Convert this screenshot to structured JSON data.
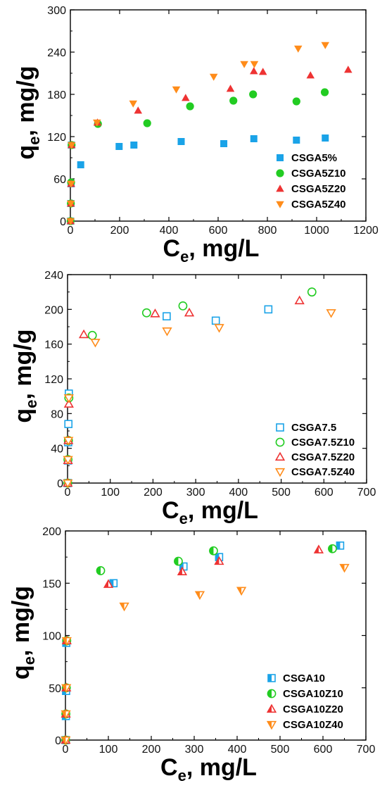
{
  "chart_data": [
    {
      "type": "scatter",
      "xlabel_main": "C",
      "xlabel_sub": "e",
      "xlabel_rest": ", mg/L",
      "ylabel_main": "q",
      "ylabel_sub": "e",
      "ylabel_rest": ", mg/g",
      "xlim": [
        0,
        1200
      ],
      "ylim": [
        0,
        300
      ],
      "xticks": [
        0,
        200,
        400,
        600,
        800,
        1000,
        1200
      ],
      "yticks": [
        0,
        60,
        120,
        180,
        240,
        300
      ],
      "legend_position": "bottom-right",
      "series": [
        {
          "name": "CSGA5%",
          "marker": "square",
          "color": "#1aa3e8",
          "fill": "full",
          "x": [
            1,
            2,
            3,
            4,
            42,
            198,
            258,
            450,
            623,
            745,
            918,
            1035
          ],
          "y": [
            0,
            25,
            53,
            108,
            80,
            106,
            108,
            113,
            110,
            117,
            115,
            118
          ]
        },
        {
          "name": "CSGA5Z10",
          "marker": "circle",
          "color": "#22cc22",
          "fill": "full",
          "x": [
            1,
            2,
            3,
            5,
            112,
            312,
            486,
            662,
            742,
            918,
            1033
          ],
          "y": [
            0,
            25,
            55,
            108,
            138,
            139,
            163,
            171,
            180,
            170,
            183
          ]
        },
        {
          "name": "CSGA5Z20",
          "marker": "triangle-up",
          "color": "#ee3333",
          "fill": "full",
          "x": [
            1,
            2,
            3,
            5,
            110,
            275,
            468,
            650,
            745,
            782,
            975,
            1128
          ],
          "y": [
            0,
            25,
            53,
            108,
            140,
            157,
            175,
            188,
            213,
            212,
            207,
            215
          ]
        },
        {
          "name": "CSGA5Z40",
          "marker": "triangle-down",
          "color": "#ff8c1a",
          "fill": "full",
          "x": [
            1,
            2,
            3,
            5,
            108,
            255,
            430,
            582,
            706,
            747,
            925,
            1035
          ],
          "y": [
            0,
            25,
            53,
            108,
            140,
            167,
            187,
            205,
            223,
            223,
            245,
            250
          ]
        }
      ]
    },
    {
      "type": "scatter",
      "xlabel_main": "C",
      "xlabel_sub": "e",
      "xlabel_rest": ", mg/L",
      "ylabel_main": "q",
      "ylabel_sub": "e",
      "ylabel_rest": ", mg/g",
      "xlim": [
        0,
        700
      ],
      "ylim": [
        0,
        240
      ],
      "xticks": [
        0,
        100,
        200,
        300,
        400,
        500,
        600,
        700
      ],
      "yticks": [
        0,
        40,
        80,
        120,
        160,
        200,
        240
      ],
      "legend_position": "bottom-right",
      "series": [
        {
          "name": "CSGA7.5",
          "marker": "square",
          "color": "#1aa3e8",
          "fill": "open",
          "x": [
            0.5,
            1,
            1.5,
            2,
            3,
            232,
            347,
            470
          ],
          "y": [
            0,
            26,
            47,
            68,
            103,
            192,
            187,
            200
          ]
        },
        {
          "name": "CSGA7.5Z10",
          "marker": "circle",
          "color": "#22cc22",
          "fill": "open",
          "x": [
            0.5,
            1,
            2,
            3,
            58,
            185,
            270,
            572
          ],
          "y": [
            0,
            27,
            49,
            98,
            170,
            196,
            204,
            220
          ]
        },
        {
          "name": "CSGA7.5Z20",
          "marker": "triangle-up",
          "color": "#ee3333",
          "fill": "open",
          "x": [
            0.5,
            1,
            2,
            3,
            38,
            205,
            285,
            543
          ],
          "y": [
            0,
            26,
            49,
            91,
            171,
            195,
            196,
            210
          ]
        },
        {
          "name": "CSGA7.5Z40",
          "marker": "triangle-down",
          "color": "#ff8c1a",
          "fill": "open",
          "x": [
            0.5,
            1,
            2,
            3,
            65,
            233,
            355,
            617
          ],
          "y": [
            0,
            27,
            49,
            98,
            162,
            175,
            179,
            196
          ]
        }
      ]
    },
    {
      "type": "scatter",
      "xlabel_main": "C",
      "xlabel_sub": "e",
      "xlabel_rest": ", mg/L",
      "ylabel_main": "q",
      "ylabel_sub": "e",
      "ylabel_rest": ", mg/g",
      "xlim": [
        0,
        700
      ],
      "ylim": [
        0,
        200
      ],
      "xticks": [
        0,
        100,
        200,
        300,
        400,
        500,
        600,
        700
      ],
      "yticks": [
        0,
        50,
        100,
        150,
        200
      ],
      "legend_position": "bottom-right",
      "series": [
        {
          "name": "CSGA10",
          "marker": "square",
          "color": "#1aa3e8",
          "fill": "half",
          "x": [
            0.5,
            1,
            1.5,
            2,
            112,
            275,
            358,
            640
          ],
          "y": [
            0,
            23,
            47,
            93,
            150,
            166,
            175,
            186
          ]
        },
        {
          "name": "CSGA10Z10",
          "marker": "circle",
          "color": "#22cc22",
          "fill": "half",
          "x": [
            0.5,
            1,
            2,
            3,
            82,
            263,
            345,
            622
          ],
          "y": [
            0,
            25,
            50,
            95,
            162,
            171,
            181,
            183
          ]
        },
        {
          "name": "CSGA10Z20",
          "marker": "triangle-up",
          "color": "#ee3333",
          "fill": "half",
          "x": [
            0.5,
            1,
            2,
            3,
            100,
            272,
            358,
            590
          ],
          "y": [
            0,
            25,
            50,
            95,
            149,
            161,
            171,
            182
          ]
        },
        {
          "name": "CSGA10Z40",
          "marker": "triangle-down",
          "color": "#ff8c1a",
          "fill": "half",
          "x": [
            0.5,
            1,
            2,
            3,
            137,
            313,
            410,
            650
          ],
          "y": [
            0,
            25,
            50,
            95,
            128,
            139,
            143,
            165
          ]
        }
      ]
    }
  ]
}
